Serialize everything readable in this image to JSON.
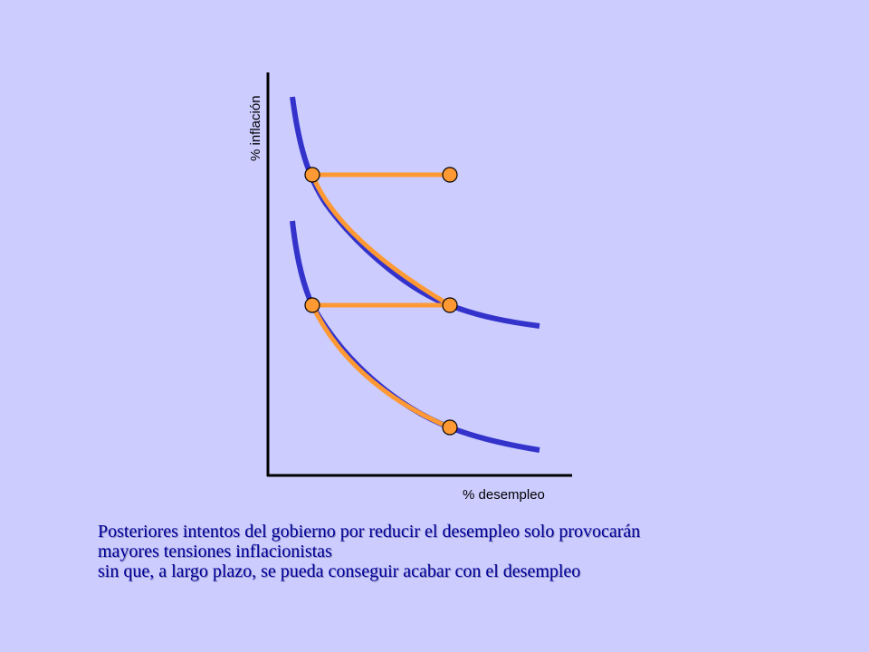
{
  "axes": {
    "x_label": "% desempleo",
    "y_label": "% inflación"
  },
  "caption": {
    "line1": "Posteriores intentos del gobierno por reducir el desempleo solo provocarán",
    "line2": "mayores tensiones inflacionistas",
    "line3": "sin que, a largo plazo,  se pueda conseguir acabar con el desempleo"
  },
  "colors": {
    "background": "#ccccff",
    "curve": "#3333cc",
    "path": "#ff9933",
    "point_fill": "#ff9933",
    "text": "#000099"
  }
}
